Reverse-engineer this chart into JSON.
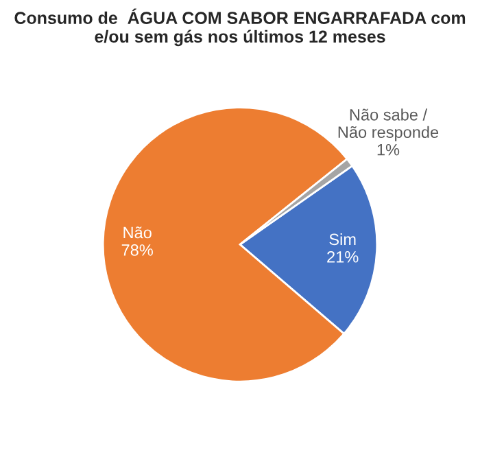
{
  "chart_data": {
    "type": "pie",
    "title": "Consumo de  ÁGUA COM SABOR ENGARRAFADA com e/ou sem gás nos últimos 12 meses",
    "categories": [
      "Sim",
      "Não",
      "Não sabe /\nNão responde"
    ],
    "values": [
      21,
      78,
      1
    ],
    "value_labels": [
      "21%",
      "78%",
      "1%"
    ],
    "colors": [
      "#4472c4",
      "#ed7d31",
      "#a5a5a5"
    ],
    "legend": false
  }
}
